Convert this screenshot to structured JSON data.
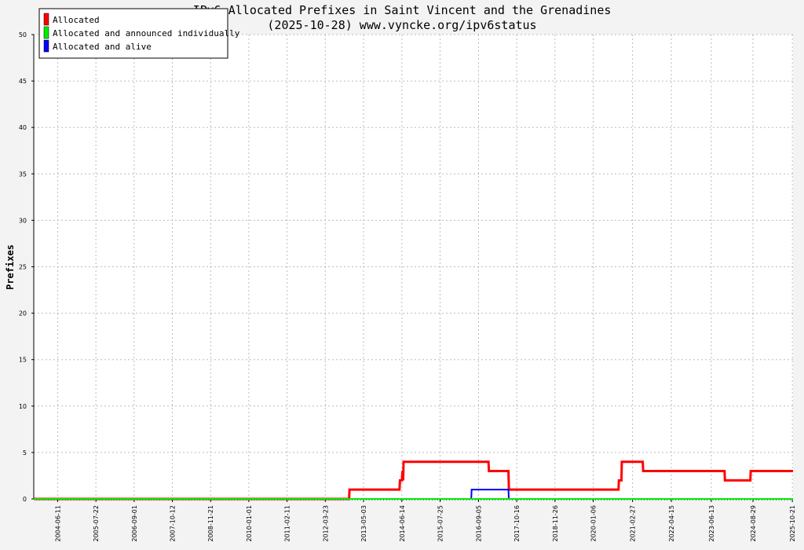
{
  "chart_data": {
    "type": "line",
    "title": "IPv6 Allocated Prefixes in Saint Vincent and the Grenadines",
    "subtitle": "(2025-10-28) www.vyncke.org/ipv6status",
    "xlabel": "",
    "ylabel": "Prefixes",
    "x_range": [
      "2003-10-01",
      "2025-10-28"
    ],
    "ylim": [
      0,
      50
    ],
    "y_ticks": [
      0,
      5,
      10,
      15,
      20,
      25,
      30,
      35,
      40,
      45,
      50
    ],
    "x_ticks": [
      "2004-06-11",
      "2005-07-22",
      "2006-09-01",
      "2007-10-12",
      "2008-11-21",
      "2010-01-01",
      "2011-02-11",
      "2012-03-23",
      "2013-05-03",
      "2014-06-14",
      "2015-07-25",
      "2016-09-05",
      "2017-10-16",
      "2018-11-26",
      "2020-01-06",
      "2021-02-27",
      "2022-04-15",
      "2023-06-13",
      "2024-08-29",
      "2025-10-21"
    ],
    "grid": true,
    "legend_position": "top-left",
    "series": [
      {
        "name": "Allocated",
        "color": "#ff0000",
        "points": [
          [
            "2003-10-01",
            0
          ],
          [
            "2012-12-01",
            0
          ],
          [
            "2012-12-05",
            1
          ],
          [
            "2014-05-20",
            1
          ],
          [
            "2014-05-25",
            2
          ],
          [
            "2014-06-15",
            2
          ],
          [
            "2014-06-20",
            3
          ],
          [
            "2014-06-28",
            2
          ],
          [
            "2014-07-02",
            4
          ],
          [
            "2016-12-20",
            4
          ],
          [
            "2016-12-25",
            3
          ],
          [
            "2017-07-20",
            3
          ],
          [
            "2017-07-25",
            1
          ],
          [
            "2020-10-01",
            1
          ],
          [
            "2020-10-05",
            2
          ],
          [
            "2020-11-01",
            2
          ],
          [
            "2020-11-05",
            4
          ],
          [
            "2021-06-15",
            4
          ],
          [
            "2021-06-20",
            3
          ],
          [
            "2023-11-01",
            3
          ],
          [
            "2023-11-05",
            2
          ],
          [
            "2024-08-01",
            2
          ],
          [
            "2024-08-05",
            3
          ],
          [
            "2025-10-28",
            3
          ]
        ]
      },
      {
        "name": "Allocated and announced individually",
        "color": "#00ee00",
        "points": [
          [
            "2003-10-01",
            0
          ],
          [
            "2025-10-28",
            0
          ]
        ]
      },
      {
        "name": "Allocated and alive",
        "color": "#0000ff",
        "points": [
          [
            "2003-10-01",
            0
          ],
          [
            "2016-06-20",
            0
          ],
          [
            "2016-06-24",
            1
          ],
          [
            "2017-07-20",
            1
          ],
          [
            "2017-07-24",
            0
          ],
          [
            "2025-10-28",
            0
          ]
        ]
      }
    ]
  }
}
